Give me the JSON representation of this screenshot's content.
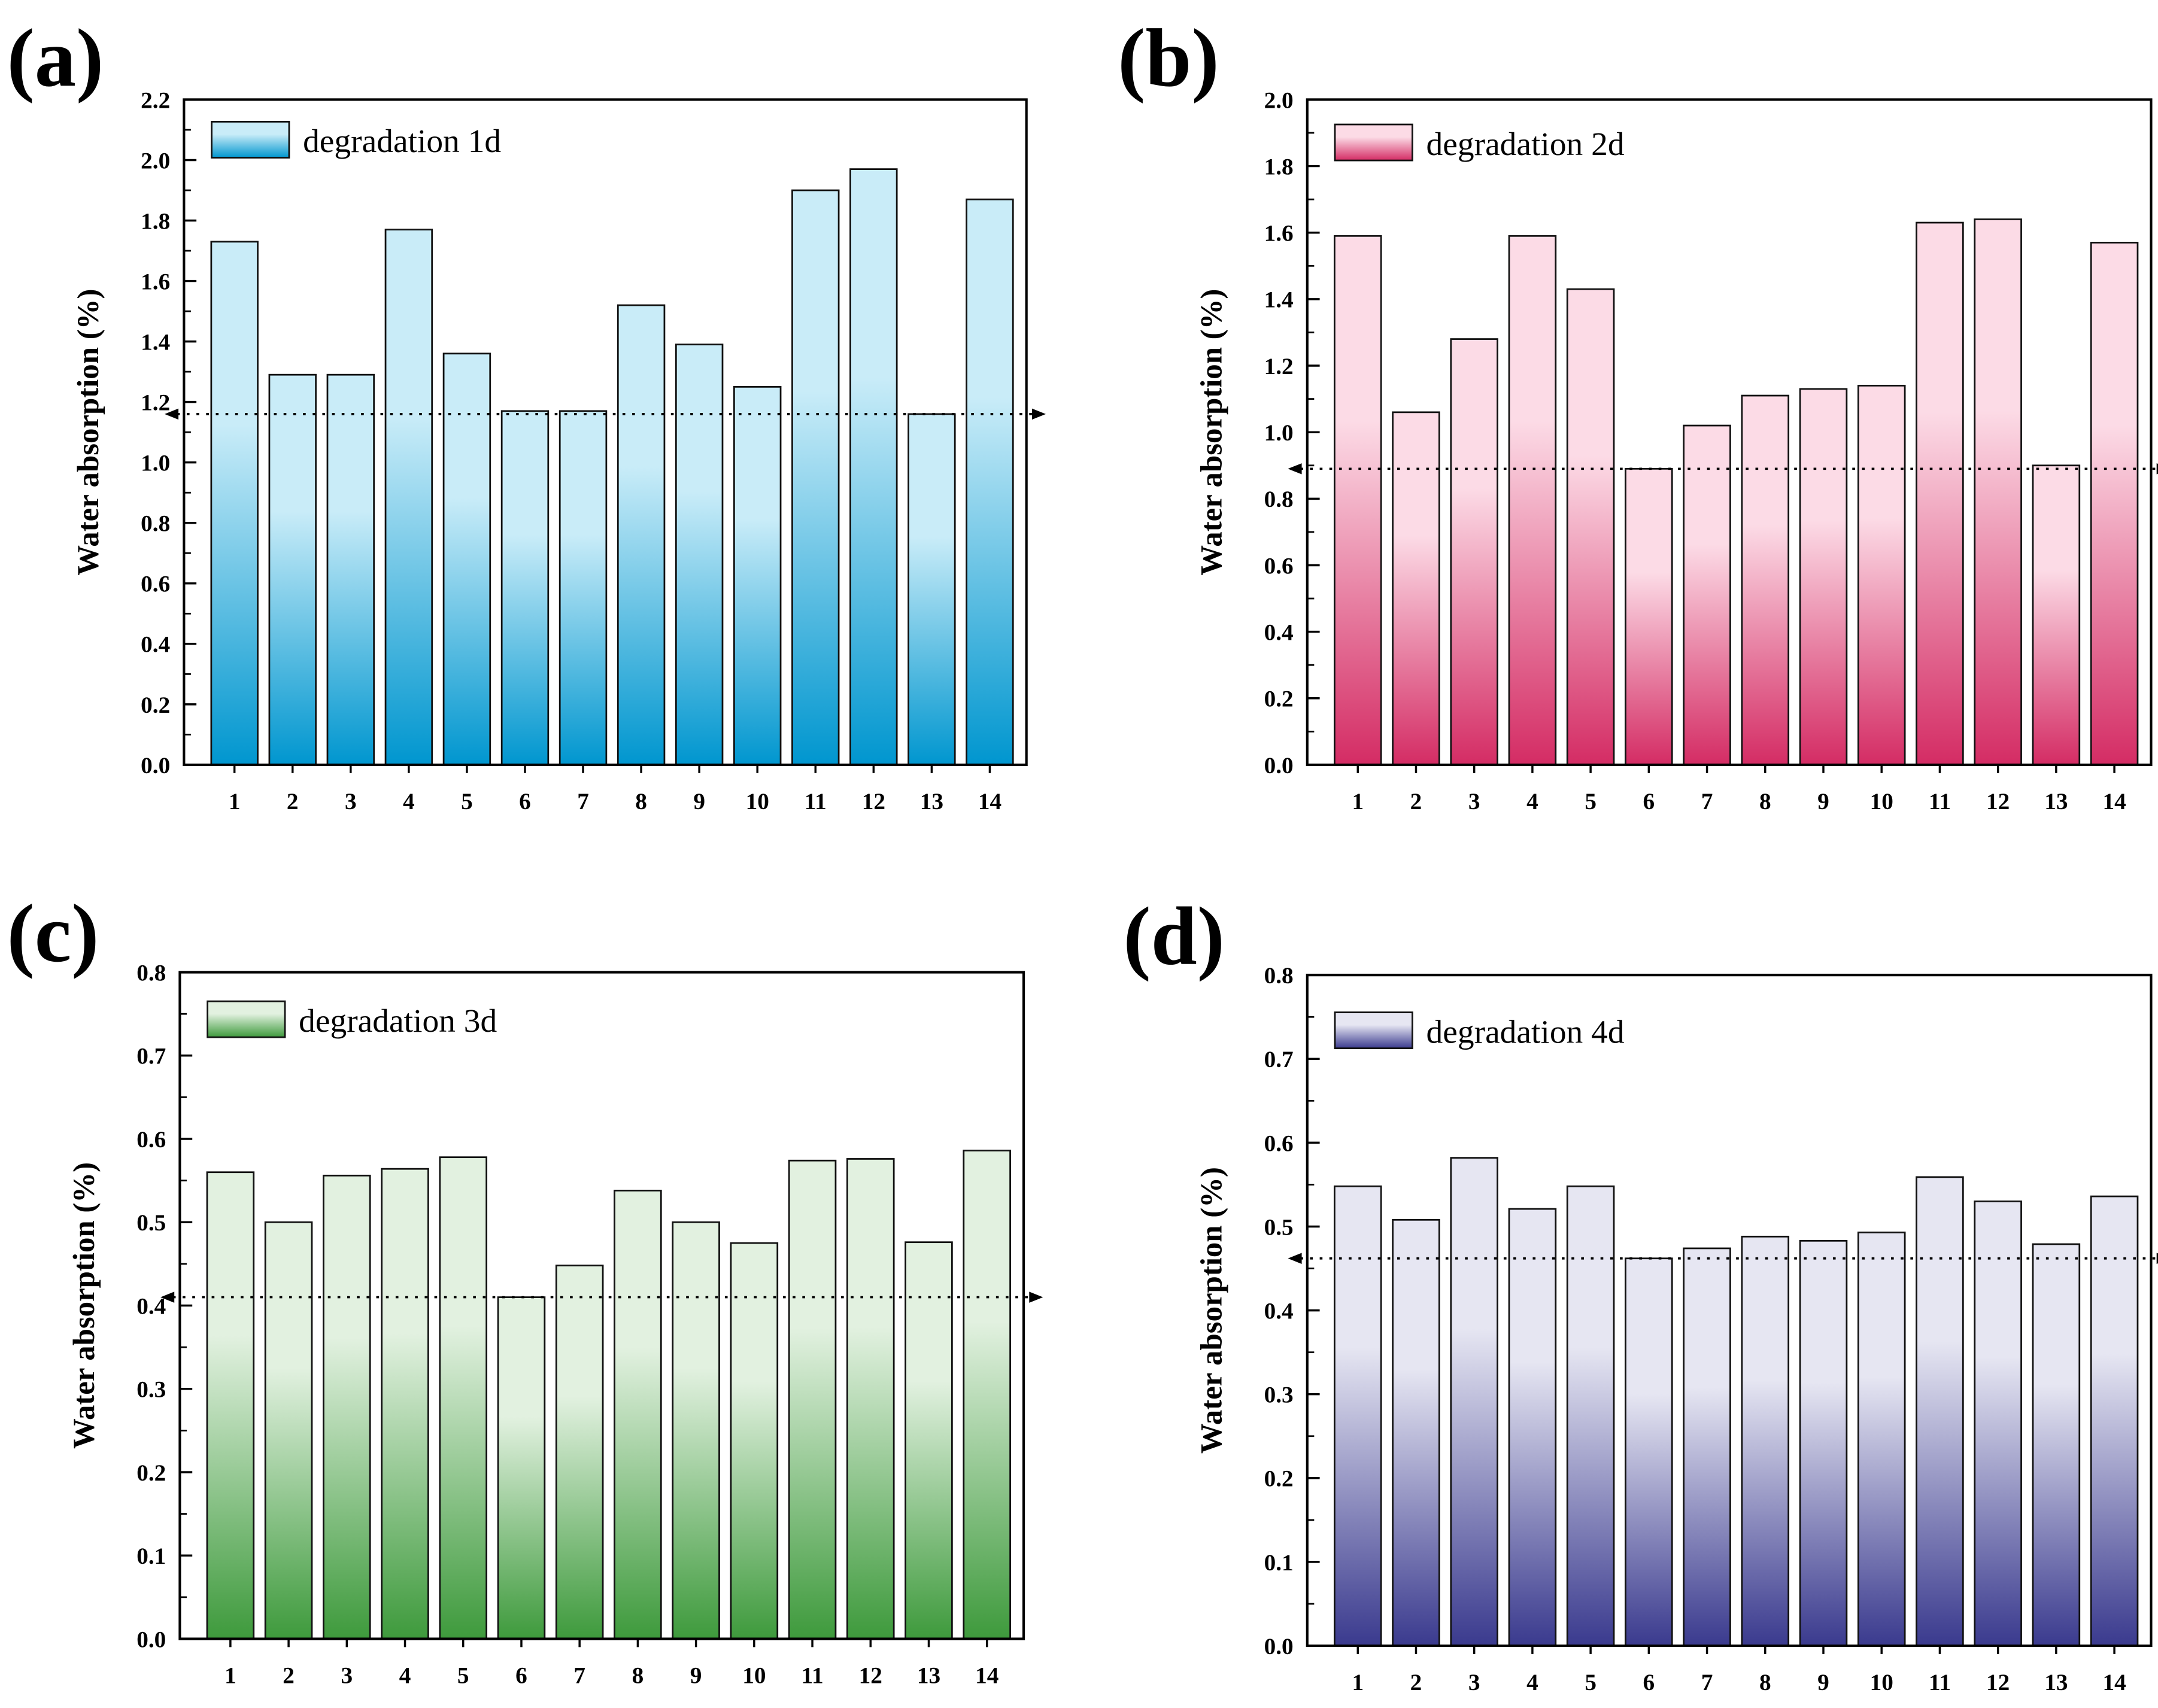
{
  "chart_data": [
    {
      "type": "bar",
      "panel_label": "(a)",
      "legend": "degradation 1d",
      "ylabel": "Water absorption (%)",
      "ylim": [
        0,
        2.2
      ],
      "ystep": 0.2,
      "ydecimals": 1,
      "categories": [
        "1",
        "2",
        "3",
        "4",
        "5",
        "6",
        "7",
        "8",
        "9",
        "10",
        "11",
        "12",
        "13",
        "14"
      ],
      "values": [
        1.73,
        1.29,
        1.29,
        1.77,
        1.36,
        1.17,
        1.17,
        1.52,
        1.39,
        1.25,
        1.9,
        1.97,
        1.16,
        1.87
      ],
      "reference_line": 1.16,
      "colors": {
        "top": "#c9ecf8",
        "bottom": "#0096cf"
      }
    },
    {
      "type": "bar",
      "panel_label": "(b)",
      "legend": "degradation 2d",
      "ylabel": "Water absorption (%)",
      "ylim": [
        0,
        2.0
      ],
      "ystep": 0.2,
      "ydecimals": 1,
      "categories": [
        "1",
        "2",
        "3",
        "4",
        "5",
        "6",
        "7",
        "8",
        "9",
        "10",
        "11",
        "12",
        "13",
        "14"
      ],
      "values": [
        1.59,
        1.06,
        1.28,
        1.59,
        1.43,
        0.89,
        1.02,
        1.11,
        1.13,
        1.14,
        1.63,
        1.64,
        0.9,
        1.57
      ],
      "reference_line": 0.89,
      "colors": {
        "top": "#fcdbe6",
        "bottom": "#d42c64"
      }
    },
    {
      "type": "bar",
      "panel_label": "(c)",
      "legend": "degradation 3d",
      "ylabel": "Water absorption (%)",
      "ylim": [
        0,
        0.8
      ],
      "ystep": 0.1,
      "ydecimals": 1,
      "categories": [
        "1",
        "2",
        "3",
        "4",
        "5",
        "6",
        "7",
        "8",
        "9",
        "10",
        "11",
        "12",
        "13",
        "14"
      ],
      "values": [
        0.56,
        0.5,
        0.556,
        0.564,
        0.578,
        0.41,
        0.448,
        0.538,
        0.5,
        0.475,
        0.574,
        0.576,
        0.476,
        0.586
      ],
      "reference_line": 0.41,
      "colors": {
        "top": "#e2f1e0",
        "bottom": "#3e9a3c"
      }
    },
    {
      "type": "bar",
      "panel_label": "(d)",
      "legend": "degradation 4d",
      "ylabel": "Water absorption (%)",
      "ylim": [
        0,
        0.8
      ],
      "ystep": 0.1,
      "ydecimals": 1,
      "categories": [
        "1",
        "2",
        "3",
        "4",
        "5",
        "6",
        "7",
        "8",
        "9",
        "10",
        "11",
        "12",
        "13",
        "14"
      ],
      "values": [
        0.548,
        0.508,
        0.582,
        0.521,
        0.548,
        0.462,
        0.474,
        0.488,
        0.483,
        0.493,
        0.559,
        0.53,
        0.479,
        0.536
      ],
      "reference_line": 0.462,
      "colors": {
        "top": "#e6e6f2",
        "bottom": "#3a3a8e"
      }
    }
  ]
}
